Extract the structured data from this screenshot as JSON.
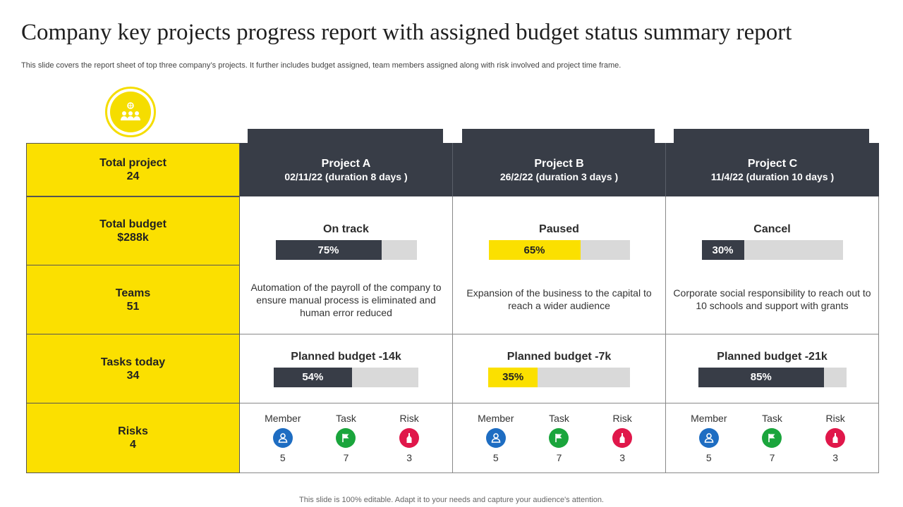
{
  "title": "Company key projects progress report with assigned budget status summary report",
  "subtitle": "This slide covers the report sheet of top three company’s projects. It further includes budget assigned, team members assigned along with risk involved and project time frame.",
  "left_rows": [
    {
      "label": "Total project",
      "value": "24"
    },
    {
      "label": "Total budget",
      "value": "$288k"
    },
    {
      "label": "Teams",
      "value": "51"
    },
    {
      "label": "Tasks today",
      "value": "34"
    },
    {
      "label": "Risks",
      "value": "4"
    }
  ],
  "projects": [
    {
      "name": "Project A",
      "date": "02/11/22 (duration 8 days )",
      "status": "On track",
      "progress": 75,
      "progress_label": "75%",
      "progress_color": "dark",
      "description": "Automation of the payroll of the company to ensure manual process is eliminated and human error reduced",
      "budget_label": "Planned budget -14k",
      "budget": 54,
      "budget_text": "54%",
      "budget_color": "dark",
      "member_label": "Member",
      "member": "5",
      "task_label": "Task",
      "task": "7",
      "risk_label": "Risk",
      "risk": "3"
    },
    {
      "name": "Project B",
      "date": "26/2/22 (duration 3 days )",
      "status": "Paused",
      "progress": 65,
      "progress_label": "65%",
      "progress_color": "yellow",
      "description": "Expansion of the business to the capital to reach a wider audience",
      "budget_label": "Planned budget -7k",
      "budget": 35,
      "budget_text": "35%",
      "budget_color": "yellow",
      "member_label": "Member",
      "member": "5",
      "task_label": "Task",
      "task": "7",
      "risk_label": "Risk",
      "risk": "3"
    },
    {
      "name": "Project C",
      "date": "11/4/22 (duration 10 days )",
      "status": "Cancel",
      "progress": 30,
      "progress_label": "30%",
      "progress_color": "dark",
      "description": "Corporate social responsibility to reach out to 10 schools and support with grants",
      "budget_label": "Planned budget -21k",
      "budget": 85,
      "budget_text": "85%",
      "budget_color": "dark",
      "member_label": "Member",
      "member": "5",
      "task_label": "Task",
      "task": "7",
      "risk_label": "Risk",
      "risk": "3"
    }
  ],
  "icons": {
    "logo": "team-icon",
    "member": "user-icon",
    "task": "flag-icon",
    "risk": "bottle-icon"
  },
  "colors": {
    "yellow": "#fbe000",
    "dark": "#383d47",
    "blue": "#1e6dc2",
    "green": "#1aa53c",
    "red": "#e0174a"
  },
  "footer": "This slide is 100% editable. Adapt it to your needs and capture your audience's attention."
}
